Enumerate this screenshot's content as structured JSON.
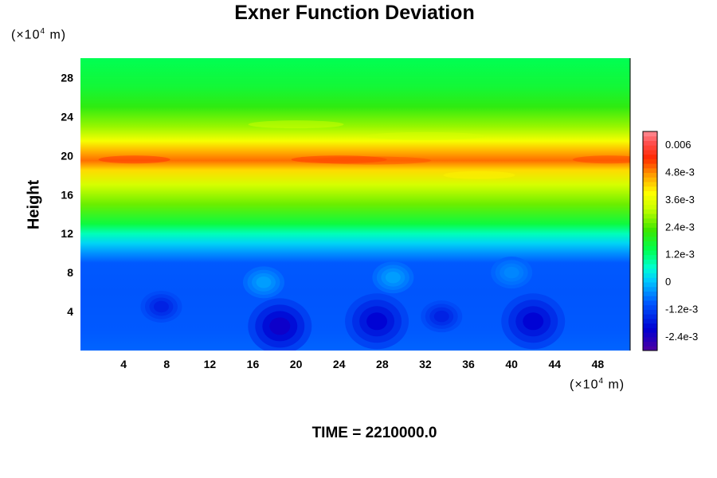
{
  "title": "Exner Function Deviation",
  "time_label": "TIME = 2210000.0",
  "y_unit": {
    "prefix": "(×10",
    "exp": "4",
    "suffix": " m)"
  },
  "x_unit": {
    "prefix": "(×10",
    "exp": "4",
    "suffix": " m)"
  },
  "chart_data": {
    "type": "heatmap",
    "title": "Exner Function Deviation",
    "ylabel": "Height",
    "xlabel": "",
    "x_unit": "×10^4 m",
    "y_unit": "×10^4 m",
    "xlim": [
      0,
      51
    ],
    "ylim": [
      0,
      30
    ],
    "x_ticks": [
      4,
      8,
      12,
      16,
      20,
      24,
      28,
      32,
      36,
      40,
      44,
      48
    ],
    "y_ticks": [
      4,
      8,
      12,
      16,
      20,
      24,
      28
    ],
    "x_tick_labels": [
      "4",
      "8",
      "12",
      "16",
      "20",
      "24",
      "28",
      "32",
      "36",
      "40",
      "44",
      "48"
    ],
    "y_tick_labels": [
      "4",
      "8",
      "12",
      "16",
      "20",
      "24",
      "28"
    ],
    "colorbar": {
      "min": -0.003,
      "max": 0.0066,
      "tick_values": [
        0.006,
        0.0048,
        0.0036,
        0.0024,
        0.0012,
        0,
        -0.0012,
        -0.0024
      ],
      "tick_labels": [
        "0.006",
        "4.8e-3",
        "3.6e-3",
        "2.4e-3",
        "1.2e-3",
        "0",
        "-1.2e-3",
        "-2.4e-3"
      ],
      "colormap": "rainbow (purple-blue-cyan-green-yellow-red-pink)"
    },
    "vertical_profile": [
      {
        "height": 0,
        "value": -0.0008
      },
      {
        "height": 2,
        "value": -0.0009
      },
      {
        "height": 6,
        "value": -0.00095
      },
      {
        "height": 9,
        "value": -0.0009
      },
      {
        "height": 10,
        "value": -0.0004
      },
      {
        "height": 11,
        "value": 0.0002
      },
      {
        "height": 12,
        "value": 0.0008
      },
      {
        "height": 13,
        "value": 0.0016
      },
      {
        "height": 15,
        "value": 0.0026
      },
      {
        "height": 17,
        "value": 0.0034
      },
      {
        "height": 18.5,
        "value": 0.0042
      },
      {
        "height": 19.5,
        "value": 0.005
      },
      {
        "height": 20.5,
        "value": 0.0045
      },
      {
        "height": 21.5,
        "value": 0.0038
      },
      {
        "height": 23,
        "value": 0.0029
      },
      {
        "height": 25,
        "value": 0.0021
      },
      {
        "height": 27,
        "value": 0.0017
      },
      {
        "height": 30,
        "value": 0.0014
      }
    ],
    "features": [
      {
        "x": 18.5,
        "y": 2.5,
        "value": -0.0022
      },
      {
        "x": 27.5,
        "y": 3.0,
        "value": -0.002
      },
      {
        "x": 42.0,
        "y": 3.0,
        "value": -0.002
      },
      {
        "x": 7.5,
        "y": 4.5,
        "value": -0.0016
      },
      {
        "x": 33.5,
        "y": 3.5,
        "value": -0.0016
      },
      {
        "x": 40.0,
        "y": 8.0,
        "value": -0.0005
      },
      {
        "x": 29.0,
        "y": 7.5,
        "value": -0.0003
      },
      {
        "x": 17.0,
        "y": 7.0,
        "value": -0.0003
      }
    ]
  }
}
